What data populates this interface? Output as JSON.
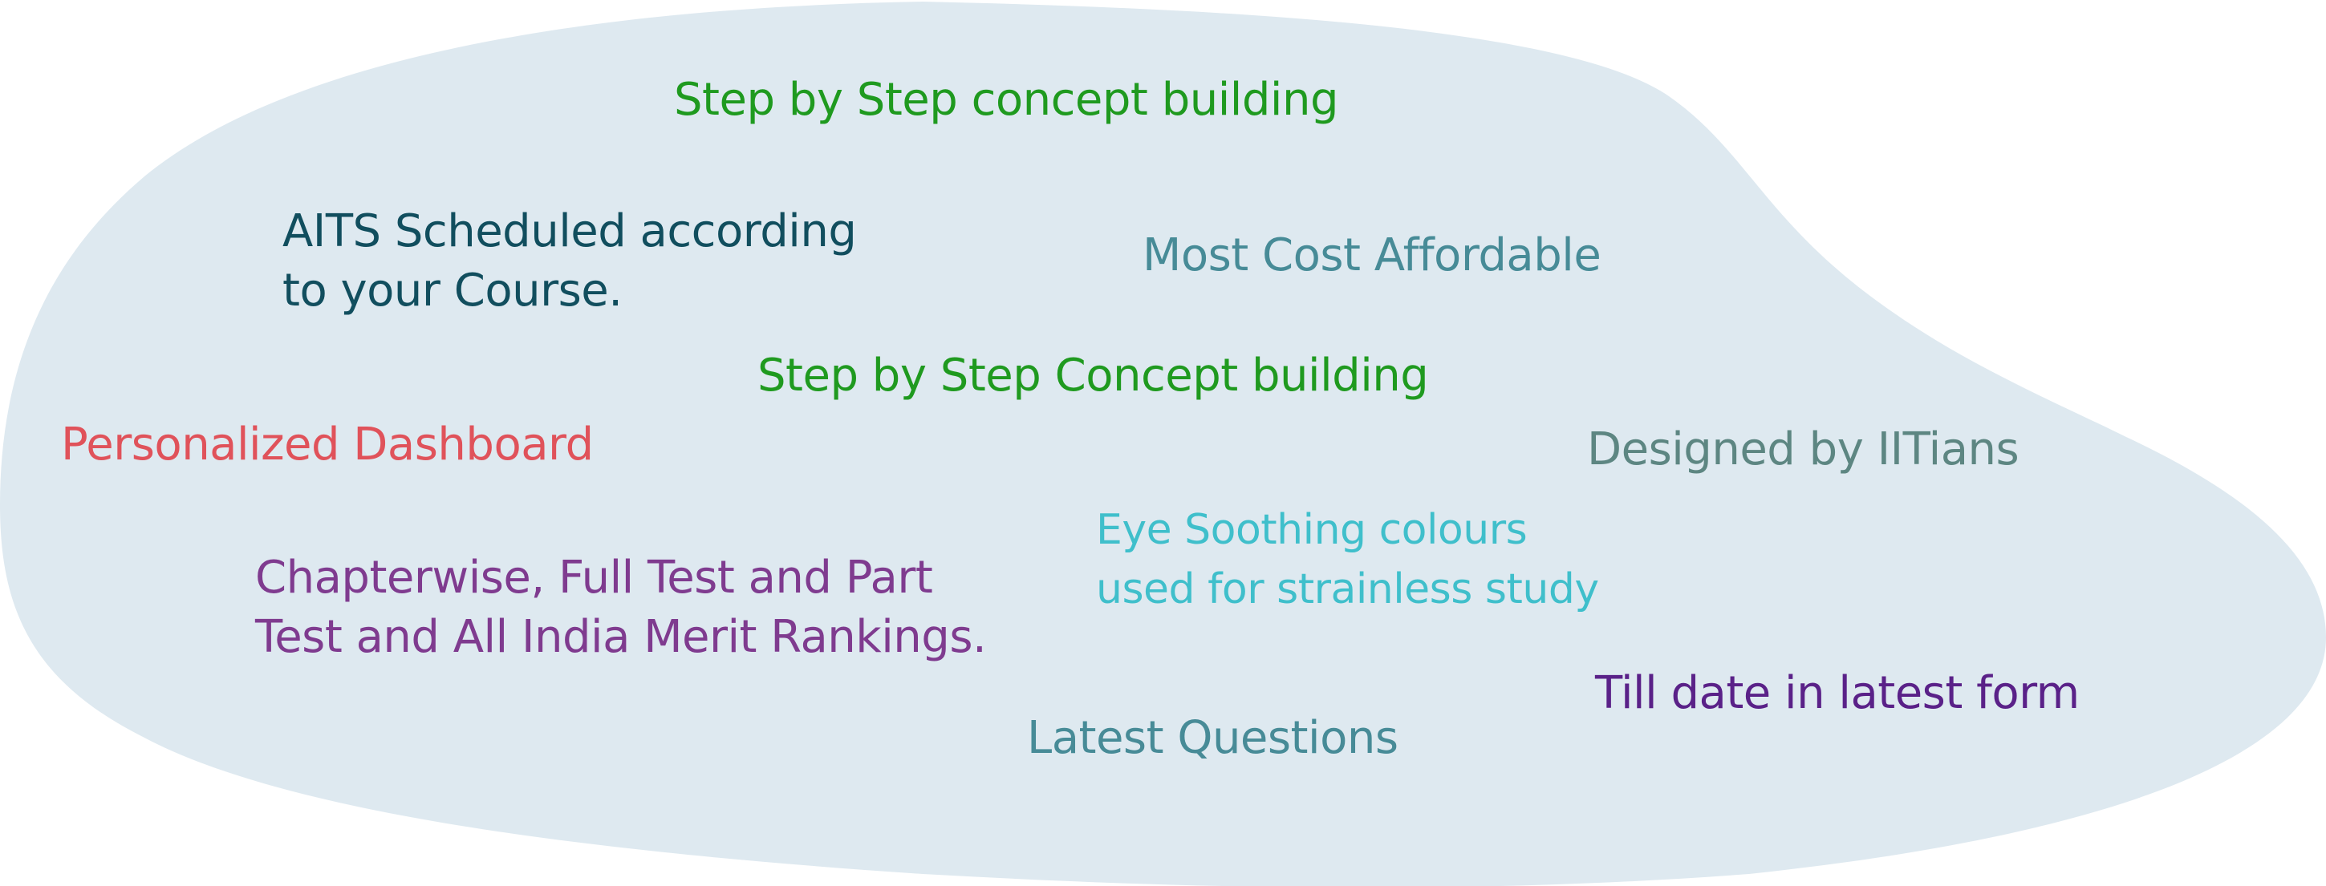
{
  "background": {
    "page_color": "#ffffff",
    "blob_color": "#dee9f0"
  },
  "phrases": {
    "step_concept_1": {
      "text": "Step by Step concept building",
      "color": "#1f9a1f"
    },
    "aits": {
      "lines": [
        "AITS Scheduled according",
        "to your Course."
      ],
      "color": "#114e5e"
    },
    "cost": {
      "text": "Most Cost Affordable",
      "color": "#478b97"
    },
    "step_concept_2": {
      "text": "Step by Step Concept building",
      "color": "#1f9a1f"
    },
    "dashboard": {
      "text": "Personalized Dashboard",
      "color": "#e0525a"
    },
    "iitians": {
      "text": "Designed by IITians",
      "color": "#5d8682"
    },
    "eye": {
      "lines": [
        "Eye Soothing colours",
        "used for strainless study"
      ],
      "color": "#3fbfcb"
    },
    "chapterwise": {
      "lines": [
        "Chapterwise, Full Test and Part",
        "Test and All India Merit Rankings."
      ],
      "color": "#7f3b8f"
    },
    "till_date": {
      "text": "Till date in latest form",
      "color": "#5a2188"
    },
    "latest": {
      "text": "Latest Questions",
      "color": "#478b97"
    }
  }
}
